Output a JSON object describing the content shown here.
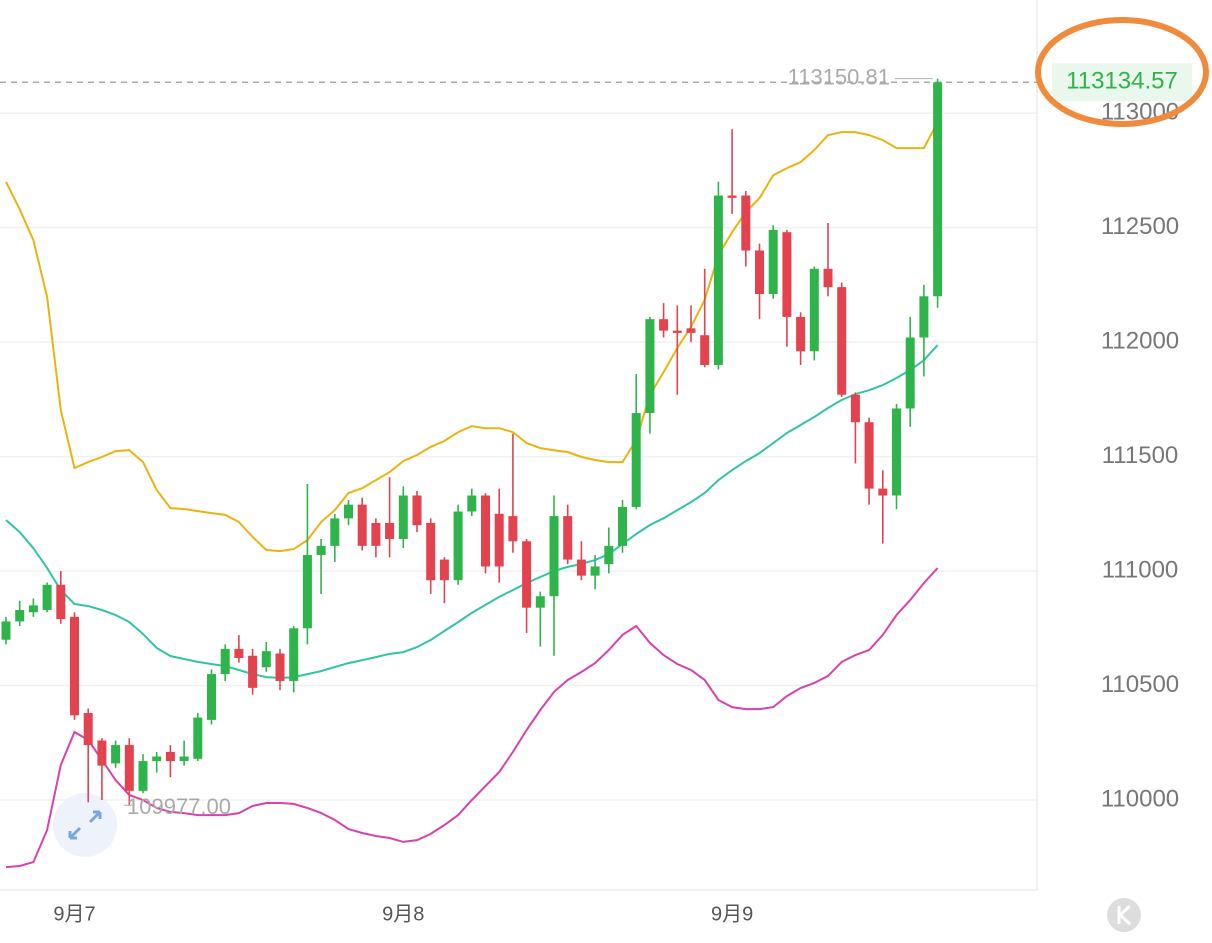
{
  "chart_data": {
    "type": "candlestick",
    "categories": [
      null,
      null,
      null,
      null,
      null,
      "9月7",
      null,
      null,
      null,
      null,
      null,
      null,
      null,
      null,
      null,
      null,
      null,
      null,
      null,
      null,
      null,
      null,
      null,
      null,
      null,
      null,
      null,
      null,
      null,
      "9月8",
      null,
      null,
      null,
      null,
      null,
      null,
      null,
      null,
      null,
      null,
      null,
      null,
      null,
      null,
      null,
      null,
      null,
      null,
      null,
      null,
      null,
      null,
      null,
      "9月9",
      null,
      null,
      null,
      null,
      null,
      null,
      null,
      null,
      null,
      null,
      null,
      null,
      null,
      null,
      null
    ],
    "open": [
      110700,
      110780,
      110820,
      110830,
      110940,
      110800,
      110380,
      110260,
      110160,
      110240,
      110040,
      110170,
      110210,
      110170,
      110180,
      110350,
      110550,
      110660,
      110630,
      110580,
      110640,
      110520,
      110750,
      111070,
      111110,
      111230,
      111290,
      111210,
      111210,
      111140,
      111330,
      111210,
      111050,
      110960,
      111260,
      111330,
      111250,
      111240,
      111130,
      110840,
      110890,
      111240,
      111050,
      110980,
      111030,
      111110,
      111280,
      111690,
      112100,
      112050,
      112060,
      112030,
      111900,
      112640,
      112640,
      112400,
      112210,
      112480,
      112110,
      111960,
      112320,
      112240,
      111770,
      111650,
      111360,
      111330,
      111710,
      112020,
      112200
    ],
    "high": [
      110800,
      110870,
      110880,
      110950,
      111000,
      110820,
      110400,
      110270,
      110260,
      110270,
      110200,
      110210,
      110240,
      110260,
      110380,
      110570,
      110680,
      110720,
      110660,
      110690,
      110660,
      110760,
      111380,
      111140,
      111250,
      111310,
      111320,
      111230,
      111410,
      111370,
      111350,
      111230,
      111060,
      111290,
      111360,
      111340,
      111360,
      111600,
      111140,
      110910,
      111330,
      111290,
      111130,
      111070,
      111190,
      111310,
      111860,
      112110,
      112170,
      112160,
      112160,
      112320,
      112700,
      112930,
      112660,
      112430,
      112510,
      112490,
      112130,
      112330,
      112520,
      112260,
      111780,
      111670,
      111440,
      111730,
      112110,
      112250,
      113150.81
    ],
    "low": [
      110680,
      110760,
      110800,
      110820,
      110770,
      110350,
      109990,
      110000,
      110140,
      109977,
      110030,
      110120,
      110100,
      110150,
      110170,
      110330,
      110520,
      110600,
      110460,
      110560,
      110480,
      110470,
      110680,
      110900,
      111040,
      111200,
      111090,
      111060,
      111060,
      111100,
      111170,
      110900,
      110860,
      110940,
      111240,
      110990,
      110950,
      111080,
      110730,
      110670,
      110630,
      111030,
      110960,
      110920,
      110990,
      111080,
      111270,
      111600,
      112020,
      111770,
      112000,
      111890,
      111880,
      112560,
      112330,
      112100,
      112190,
      111980,
      111900,
      111920,
      112200,
      111760,
      111470,
      111290,
      111120,
      111270,
      111630,
      111850,
      112150
    ],
    "close": [
      110780,
      110830,
      110850,
      110940,
      110790,
      110370,
      110240,
      110150,
      110240,
      110040,
      110170,
      110190,
      110170,
      110190,
      110360,
      110550,
      110660,
      110620,
      110490,
      110650,
      110520,
      110750,
      111070,
      111110,
      111230,
      111290,
      111110,
      111110,
      111140,
      111330,
      111200,
      110960,
      110960,
      111260,
      111330,
      111020,
      111020,
      111130,
      110840,
      110890,
      111240,
      111050,
      110980,
      111020,
      111110,
      111280,
      111690,
      112100,
      112050,
      112040,
      112040,
      111900,
      112640,
      112630,
      112400,
      112210,
      112490,
      112110,
      111960,
      112320,
      112240,
      111770,
      111650,
      111360,
      111330,
      111710,
      112020,
      112200,
      113134.57
    ],
    "up_color": "#2fb44c",
    "down_color": "#e2434f",
    "lines": [
      {
        "color": "#e9b310",
        "values": [
          112700,
          112580,
          112445,
          112197,
          111703,
          111450,
          111476,
          111498,
          111524,
          111528,
          111476,
          111354,
          111275,
          111271,
          111262,
          111253,
          111245,
          111214,
          111149,
          111092,
          111087,
          111096,
          111135,
          111214,
          111266,
          111341,
          111362,
          111397,
          111432,
          111480,
          111507,
          111542,
          111568,
          111607,
          111633,
          111624,
          111624,
          111607,
          111559,
          111537,
          111528,
          111520,
          111498,
          111485,
          111476,
          111476,
          111572,
          111769,
          111869,
          111974,
          112066,
          112184,
          112380,
          112480,
          112568,
          112629,
          112729,
          112760,
          112786,
          112839,
          112904,
          112917,
          112917,
          112904,
          112882,
          112847,
          112847,
          112847,
          112961
        ]
      },
      {
        "color": "#33c3a7",
        "values": [
          111223,
          111170,
          111100,
          111013,
          110917,
          110856,
          110847,
          110830,
          110808,
          110777,
          110725,
          110664,
          110629,
          110616,
          110603,
          110594,
          110585,
          110568,
          110550,
          110537,
          110533,
          110537,
          110550,
          110563,
          110581,
          110598,
          110611,
          110624,
          110638,
          110646,
          110668,
          110699,
          110738,
          110777,
          110817,
          110852,
          110887,
          110917,
          110948,
          110974,
          111000,
          111018,
          111031,
          111048,
          111074,
          111118,
          111162,
          111201,
          111231,
          111266,
          111301,
          111341,
          111397,
          111441,
          111480,
          111515,
          111559,
          111603,
          111638,
          111673,
          111712,
          111747,
          111773,
          111790,
          111812,
          111843,
          111878,
          111921,
          111987
        ]
      },
      {
        "color": "#d842ad",
        "values": [
          109707,
          109712,
          109729,
          109869,
          110153,
          110297,
          110262,
          110175,
          110087,
          110022,
          110000,
          109965,
          109948,
          109943,
          109934,
          109934,
          109934,
          109943,
          109974,
          109987,
          109987,
          109983,
          109965,
          109943,
          109913,
          109873,
          109856,
          109843,
          109834,
          109817,
          109825,
          109852,
          109891,
          109934,
          110000,
          110061,
          110122,
          110210,
          110306,
          110393,
          110472,
          110524,
          110559,
          110598,
          110655,
          110721,
          110760,
          110686,
          110633,
          110594,
          110568,
          110524,
          110437,
          110406,
          110397,
          110397,
          110406,
          110454,
          110489,
          110511,
          110542,
          110603,
          110633,
          110655,
          110721,
          110808,
          110873,
          110948,
          111013
        ]
      }
    ],
    "ylim": [
      109607,
      113494
    ],
    "yticks": [
      110000,
      110500,
      111000,
      111500,
      112000,
      112500,
      113000
    ],
    "grid": true,
    "max_label": {
      "value": 113150.81,
      "label": "113150.81"
    },
    "min_label": {
      "value": 109977,
      "label": "109977.00"
    },
    "last_price": {
      "value": 113134.57,
      "label": "113134.57"
    }
  }
}
